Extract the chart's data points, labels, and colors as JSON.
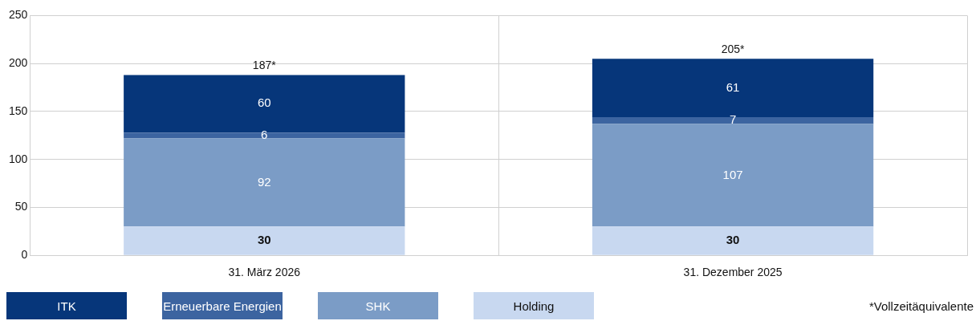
{
  "chart_data": {
    "type": "bar",
    "stacked": true,
    "categories": [
      "31. März 2026",
      "31. Dezember 2025"
    ],
    "series": [
      {
        "name": "Holding",
        "color": "#c8d8f0",
        "values": [
          30,
          30
        ]
      },
      {
        "name": "SHK",
        "color": "#7b9cc6",
        "values": [
          92,
          107
        ]
      },
      {
        "name": "Erneuerbare Energien",
        "color": "#3c64a0",
        "values": [
          6,
          7
        ]
      },
      {
        "name": "ITK",
        "color": "#06367a",
        "values": [
          60,
          61
        ]
      }
    ],
    "totals": [
      "187*",
      "205*"
    ],
    "ylim": [
      0,
      250
    ],
    "yticks": [
      0,
      50,
      100,
      150,
      200,
      250
    ],
    "grid": true,
    "legend": "bottom",
    "data_labels": true,
    "annotations": [
      "*Vollzeitäquivalente"
    ]
  }
}
